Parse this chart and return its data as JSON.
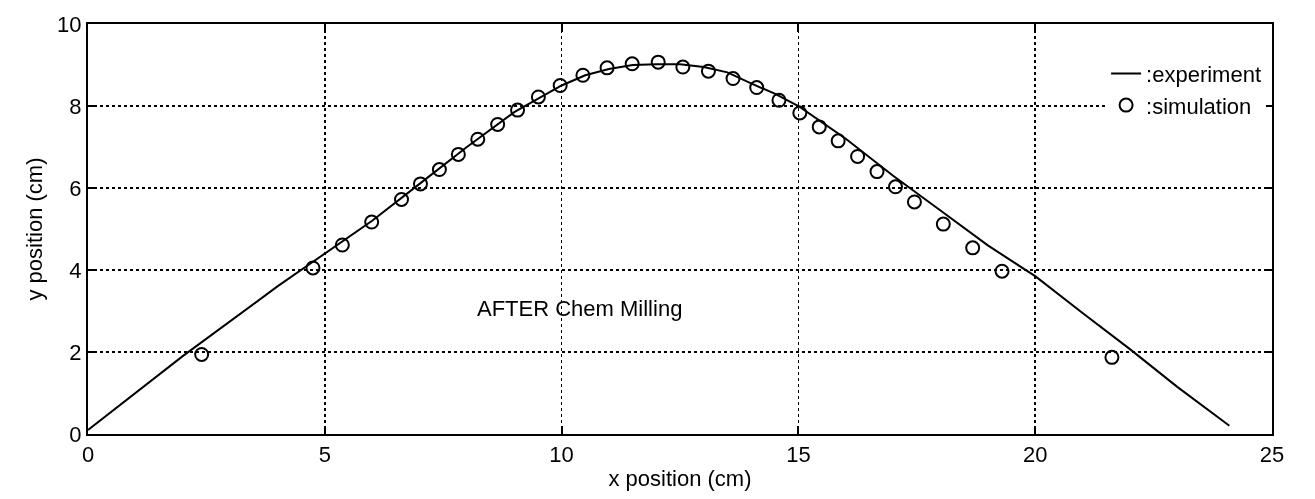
{
  "chart_data": {
    "type": "line",
    "xlabel": "x position (cm)",
    "ylabel": "y position (cm)",
    "annotations": [
      "AFTER Chem Milling"
    ],
    "xlim": [
      0,
      25
    ],
    "xticks": [
      0,
      5,
      10,
      15,
      20,
      25
    ],
    "ylim": [
      0,
      10
    ],
    "yticks": [
      0,
      2,
      4,
      6,
      8,
      10
    ],
    "grid": true,
    "legend": "top right",
    "series": [
      {
        "name": ":experiment",
        "color": "#000000",
        "marker": "none",
        "line_style": "solid",
        "x": [
          0,
          2,
          4,
          4.75,
          6,
          7,
          8,
          9,
          10,
          10.5,
          11,
          11.5,
          12,
          12.5,
          13,
          13.5,
          14,
          14.5,
          15,
          15.5,
          16,
          17,
          18,
          19,
          20,
          21,
          22,
          23,
          24.1
        ],
        "values": [
          0.1,
          1.9,
          3.6,
          4.2,
          5.2,
          6.1,
          7.0,
          7.85,
          8.5,
          8.75,
          8.9,
          9.0,
          9.02,
          9.02,
          8.95,
          8.82,
          8.55,
          8.3,
          8.0,
          7.6,
          7.2,
          6.3,
          5.45,
          4.6,
          3.85,
          2.95,
          2.07,
          1.15,
          0.2
        ]
      },
      {
        "name": ":simulation",
        "type": "scatter",
        "color": "#000000",
        "marker": "circle",
        "x": [
          2.4,
          4.75,
          5.37,
          5.99,
          6.62,
          7.02,
          7.42,
          7.82,
          8.23,
          8.65,
          9.07,
          9.51,
          9.97,
          10.45,
          10.96,
          11.49,
          12.04,
          12.56,
          13.1,
          13.62,
          14.12,
          14.59,
          15.03,
          15.44,
          15.84,
          16.25,
          16.66,
          17.05,
          17.45,
          18.06,
          18.68,
          19.3,
          21.62
        ],
        "values": [
          1.94,
          4.05,
          4.61,
          5.17,
          5.72,
          6.1,
          6.45,
          6.82,
          7.19,
          7.55,
          7.9,
          8.22,
          8.5,
          8.75,
          8.93,
          9.03,
          9.07,
          8.95,
          8.85,
          8.67,
          8.45,
          8.14,
          7.83,
          7.49,
          7.15,
          6.77,
          6.4,
          6.03,
          5.66,
          5.12,
          4.54,
          3.97,
          1.87
        ]
      }
    ]
  }
}
